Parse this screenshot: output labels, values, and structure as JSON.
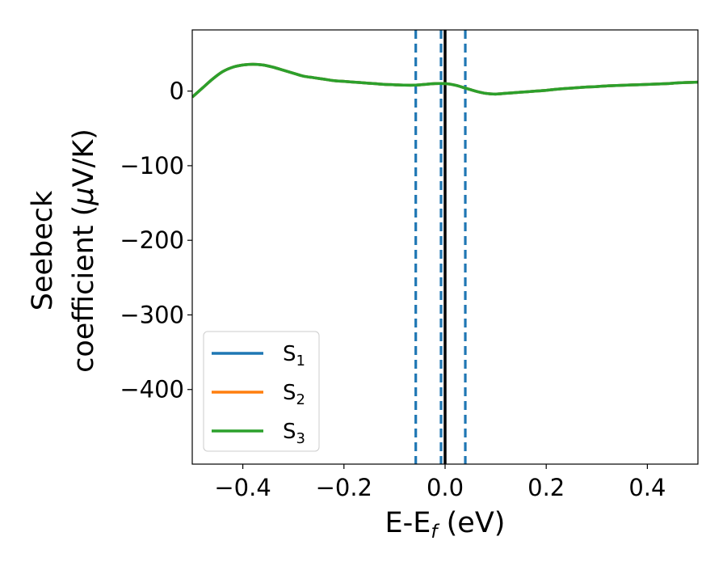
{
  "chart_data": {
    "type": "line",
    "xlabel": {
      "main": "E-E",
      "sub": "f",
      "rest": " (eV)"
    },
    "ylabel": {
      "line1": "Seebeck",
      "line2_main": "coefficient  (",
      "line2_mu": "μ",
      "line2_rest": "V/K)"
    },
    "xlim": [
      -0.5,
      0.5
    ],
    "ylim": [
      -500,
      82
    ],
    "xticks": [
      -0.4,
      -0.2,
      0.0,
      0.2,
      0.4
    ],
    "xtick_labels": [
      "−0.4",
      "−0.2",
      "0.0",
      "0.2",
      "0.4"
    ],
    "yticks": [
      0,
      -100,
      -200,
      -300,
      -400
    ],
    "ytick_labels": [
      "0",
      "−100",
      "−200",
      "−300",
      "−400"
    ],
    "grid": false,
    "legend_position": "lower-left",
    "series": [
      {
        "name": "S",
        "sub": "1",
        "color": "#1f77b4"
      },
      {
        "name": "S",
        "sub": "2",
        "color": "#ff7f0e"
      },
      {
        "name": "S",
        "sub": "3",
        "color": "#2ca02c"
      }
    ],
    "x": [
      -0.5,
      -0.48,
      -0.46,
      -0.44,
      -0.42,
      -0.4,
      -0.38,
      -0.36,
      -0.34,
      -0.32,
      -0.3,
      -0.28,
      -0.26,
      -0.24,
      -0.22,
      -0.2,
      -0.18,
      -0.16,
      -0.14,
      -0.12,
      -0.1,
      -0.08,
      -0.06,
      -0.04,
      -0.02,
      0.0,
      0.02,
      0.04,
      0.06,
      0.08,
      0.1,
      0.12,
      0.14,
      0.16,
      0.18,
      0.2,
      0.22,
      0.24,
      0.26,
      0.28,
      0.3,
      0.32,
      0.34,
      0.36,
      0.38,
      0.4,
      0.42,
      0.44,
      0.46,
      0.48,
      0.5
    ],
    "y": [
      -8,
      4,
      16,
      26,
      32,
      35,
      36,
      35,
      32,
      28,
      24,
      20,
      18,
      16,
      14,
      13,
      12,
      11,
      10,
      9,
      8.5,
      8,
      8,
      9,
      10,
      10,
      8,
      4,
      0,
      -3,
      -4,
      -3,
      -2,
      -1,
      0,
      1,
      2.5,
      3.5,
      4.5,
      5.5,
      6,
      7,
      7.5,
      8,
      8.5,
      9,
      9.5,
      10,
      11,
      11.5,
      12
    ],
    "vlines": [
      {
        "x": -0.058,
        "style": "dashed",
        "color": "#1f77b4"
      },
      {
        "x": -0.008,
        "style": "dashed",
        "color": "#1f77b4"
      },
      {
        "x": 0.04,
        "style": "dashed",
        "color": "#1f77b4"
      },
      {
        "x": 0.0,
        "style": "solid",
        "color": "#000000"
      }
    ]
  }
}
